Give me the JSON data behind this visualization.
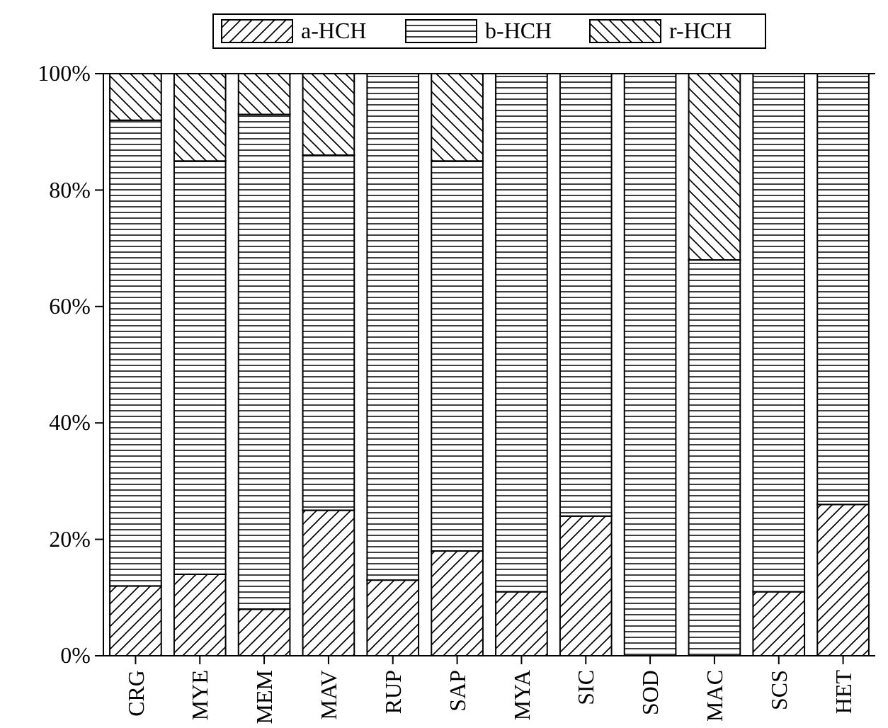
{
  "chart_data": {
    "type": "bar",
    "stacked": true,
    "categories": [
      "CRG",
      "MYE",
      "MEM",
      "MAV",
      "RUP",
      "SAP",
      "MYA",
      "SIC",
      "SOD",
      "MAC",
      "SCS",
      "HET"
    ],
    "series": [
      {
        "name": "a-HCH",
        "color": "#000000",
        "values": [
          12,
          14,
          8,
          25,
          13,
          18,
          11,
          24,
          0,
          0,
          11,
          26
        ]
      },
      {
        "name": "b-HCH",
        "color": "#000000",
        "values": [
          80,
          71,
          85,
          61,
          87,
          67,
          89,
          76,
          100,
          68,
          89,
          74
        ]
      },
      {
        "name": "r-HCH",
        "color": "#000000",
        "values": [
          8,
          15,
          7,
          14,
          0,
          15,
          0,
          0,
          0,
          32,
          0,
          0
        ]
      }
    ],
    "ylim": [
      0,
      100
    ],
    "yticks": [
      {
        "value": 0,
        "label": "0%"
      },
      {
        "value": 20,
        "label": "20%"
      },
      {
        "value": 40,
        "label": "40%"
      },
      {
        "value": 60,
        "label": "60%"
      },
      {
        "value": 80,
        "label": "80%"
      },
      {
        "value": 100,
        "label": "100%"
      }
    ],
    "legend": "top",
    "grid": false
  }
}
